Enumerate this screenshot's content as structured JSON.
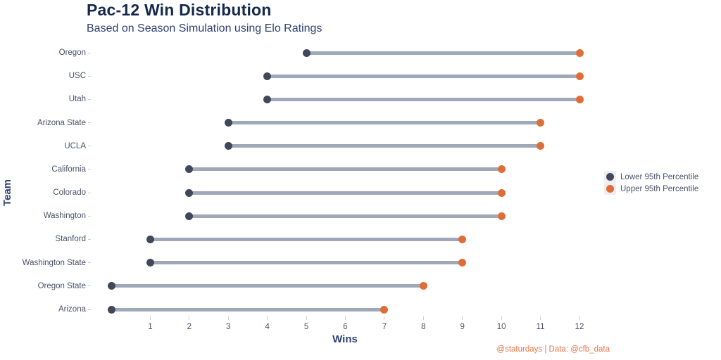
{
  "chart_data": {
    "type": "dumbbell",
    "title": "Pac-12 Win Distribution",
    "subtitle": "Based on Season Simulation using Elo Ratings",
    "xlabel": "Wins",
    "ylabel": "Team",
    "caption": "@staturdays | Data: @cfb_data",
    "categories": [
      "Oregon",
      "USC",
      "Utah",
      "Arizona State",
      "UCLA",
      "California",
      "Colorado",
      "Washington",
      "Stanford",
      "Washington State",
      "Oregon State",
      "Arizona"
    ],
    "series": [
      {
        "name": "Lower 95th Percentile",
        "values": [
          5,
          4,
          4,
          3,
          3,
          2,
          2,
          2,
          1,
          1,
          0,
          0
        ],
        "color": "#404859"
      },
      {
        "name": "Upper 95th Percentile",
        "values": [
          12,
          12,
          12,
          11,
          11,
          10,
          10,
          10,
          9,
          9,
          8,
          7
        ],
        "color": "#e06d38"
      }
    ],
    "xlim": [
      0,
      12
    ],
    "x_ticks": [
      1,
      2,
      3,
      4,
      5,
      6,
      7,
      8,
      9,
      10,
      11,
      12
    ],
    "grid": false,
    "legend_position": "right",
    "colors": {
      "title": "#15294d",
      "subtitle": "#2e4270",
      "axis_title": "#2e4270",
      "tick_label": "#4a5268",
      "tick_mark": "#c9cdd4",
      "segment": "#9fa8b8",
      "caption": "#e8774a",
      "legend_key_bg": "#efefef",
      "background": "#ffffff"
    }
  }
}
